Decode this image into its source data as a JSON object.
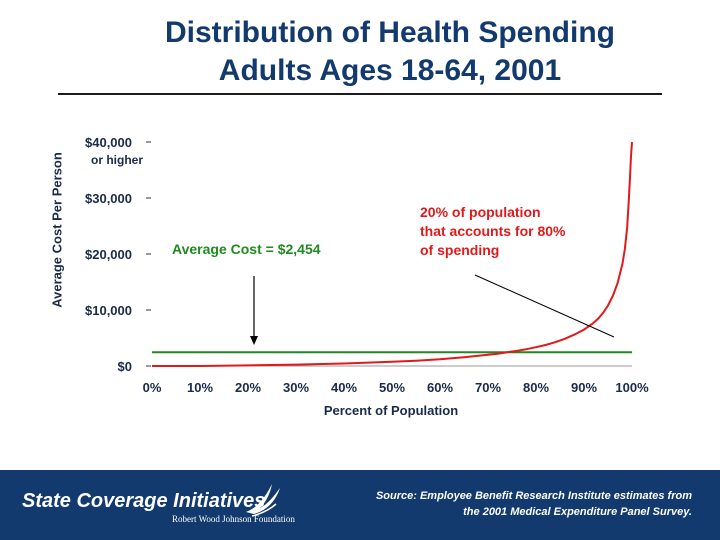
{
  "title": {
    "line1": "Distribution of Health Spending",
    "line2": "Adults Ages 18-64, 2001"
  },
  "chart_data": {
    "type": "line",
    "xlabel": "Percent of Population",
    "ylabel": "Average Cost Per Person",
    "xlim": [
      0,
      100
    ],
    "ylim": [
      0,
      40000
    ],
    "x_ticks": [
      "0%",
      "10%",
      "20%",
      "30%",
      "40%",
      "50%",
      "60%",
      "70%",
      "80%",
      "90%",
      "100%"
    ],
    "y_ticks": [
      {
        "value": 0,
        "label": "$0"
      },
      {
        "value": 10000,
        "label": "$10,000"
      },
      {
        "value": 20000,
        "label": "$20,000"
      },
      {
        "value": 30000,
        "label": "$30,000"
      },
      {
        "value": 40000,
        "label": "$40,000",
        "sublabel": "or higher"
      }
    ],
    "series": [
      {
        "color": "#e0191b",
        "x": [
          0,
          10,
          20,
          30,
          40,
          45,
          50,
          55,
          60,
          65,
          70,
          72,
          74,
          76,
          78,
          80,
          82,
          84,
          86,
          88,
          90,
          92,
          93,
          94,
          95,
          96,
          97,
          98,
          98.5,
          99,
          99.3,
          99.6,
          99.8,
          100
        ],
        "y": [
          0,
          0,
          100,
          250,
          450,
          600,
          750,
          950,
          1200,
          1550,
          2000,
          2200,
          2450,
          2700,
          3000,
          3350,
          3750,
          4250,
          4850,
          5600,
          6500,
          7700,
          8500,
          9500,
          10800,
          12500,
          14800,
          18200,
          20800,
          24800,
          29000,
          34000,
          37500,
          40000
        ]
      }
    ],
    "average": {
      "value": 2454,
      "color": "#1f8a1f",
      "label": "Average Cost = $2,454"
    },
    "annotation": {
      "text": [
        "20% of population",
        "that accounts for 80%",
        "of spending"
      ],
      "color": "#e0191b"
    }
  },
  "footer": {
    "org_name": "State Coverage Initiatives",
    "foundation": "Robert Wood Johnson Foundation",
    "source_line1": "Source: Employee Benefit Research Institute estimates from",
    "source_line2": "the 2001 Medical Expenditure Panel Survey."
  }
}
